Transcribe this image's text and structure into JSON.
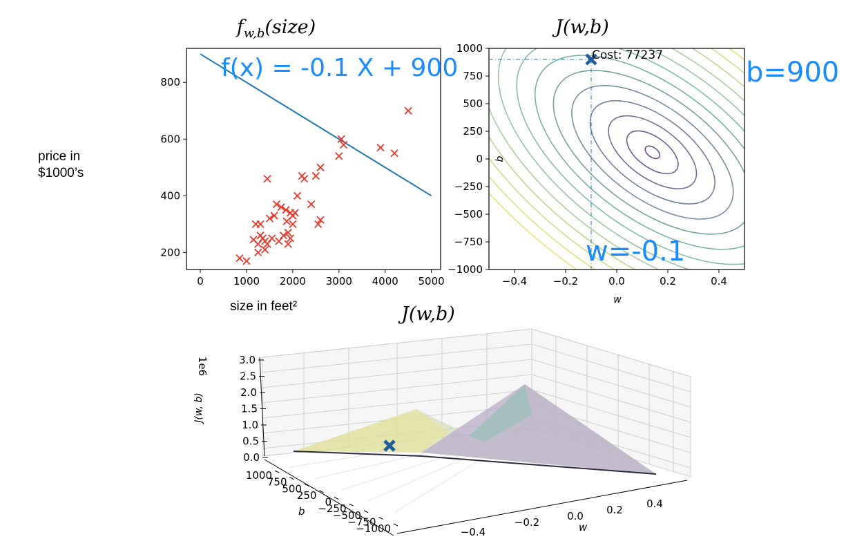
{
  "left_label": {
    "line1": "price in",
    "line2": "$1000’s"
  },
  "xlabel_size": "size in feet²",
  "chart_data": [
    {
      "type": "scatter",
      "title": "f_w,b(size)",
      "title_main": "f",
      "title_sub": "w,b",
      "title_arg": "(size)",
      "xlim": [
        -300,
        5200
      ],
      "ylim": [
        140,
        920
      ],
      "xticks": [
        0,
        1000,
        2000,
        3000,
        4000,
        5000
      ],
      "yticks": [
        200,
        400,
        600,
        800
      ],
      "points_color": "#e8382b",
      "line_color": "#1f77b4",
      "line": {
        "x": [
          0,
          5000
        ],
        "y": [
          900,
          400
        ]
      },
      "x": [
        850,
        1000,
        1150,
        1200,
        1250,
        1250,
        1300,
        1300,
        1350,
        1400,
        1400,
        1450,
        1500,
        1550,
        1600,
        1650,
        1700,
        1750,
        1800,
        1850,
        1870,
        1900,
        1900,
        1950,
        1950,
        2000,
        2000,
        2050,
        2100,
        2200,
        2250,
        2400,
        2500,
        2550,
        2600,
        2600,
        3000,
        3050,
        3100,
        3900,
        4200,
        4500,
        1450
      ],
      "y": [
        180,
        170,
        245,
        300,
        200,
        230,
        260,
        300,
        250,
        210,
        240,
        230,
        320,
        250,
        330,
        370,
        240,
        360,
        260,
        350,
        310,
        230,
        270,
        250,
        340,
        300,
        330,
        340,
        400,
        470,
        460,
        370,
        470,
        300,
        500,
        315,
        540,
        600,
        580,
        570,
        550,
        700,
        460
      ],
      "annotation": "f(x) = -0.1 X + 900"
    },
    {
      "type": "contour",
      "title": "J(w,b)",
      "xlabel": "w",
      "ylabel": "b",
      "xlim": [
        -0.5,
        0.5
      ],
      "ylim": [
        -1000,
        1000
      ],
      "xticks": [
        -0.4,
        -0.2,
        0.0,
        0.2,
        0.4
      ],
      "xtick_labels": [
        "−0.4",
        "−0.2",
        "0.0",
        "0.2",
        "0.4"
      ],
      "yticks": [
        1000,
        750,
        500,
        250,
        0,
        -250,
        -500,
        -750,
        -1000
      ],
      "ytick_labels": [
        "1000",
        "750",
        "500",
        "250",
        "0",
        "−250",
        "−500",
        "−750",
        "−1000"
      ],
      "marker": {
        "w": -0.1,
        "b": 900
      },
      "marker_color": "#1f5f99",
      "cost_label": "Cost: 77237",
      "annotation_b": "b=900",
      "annotation_w": "w=-0.1",
      "center": {
        "w": 0.14,
        "b": 60
      }
    },
    {
      "type": "surface3d",
      "title": "J(w,b)",
      "zlabel": "J(w, b)",
      "z_scale_label": "1e6",
      "zticks": [
        "3.0",
        "2.5",
        "2.0",
        "1.5",
        "1.0",
        "0.5",
        "0.0"
      ],
      "bticks": [
        "1000",
        "750",
        "500",
        "250",
        "0",
        "−250",
        "−500",
        "−750",
        "−1000"
      ],
      "blabel": "b",
      "wticks": [
        "−0.4",
        "−0.2",
        "0.0",
        "0.2",
        "0.4"
      ],
      "wlabel": "w"
    }
  ]
}
